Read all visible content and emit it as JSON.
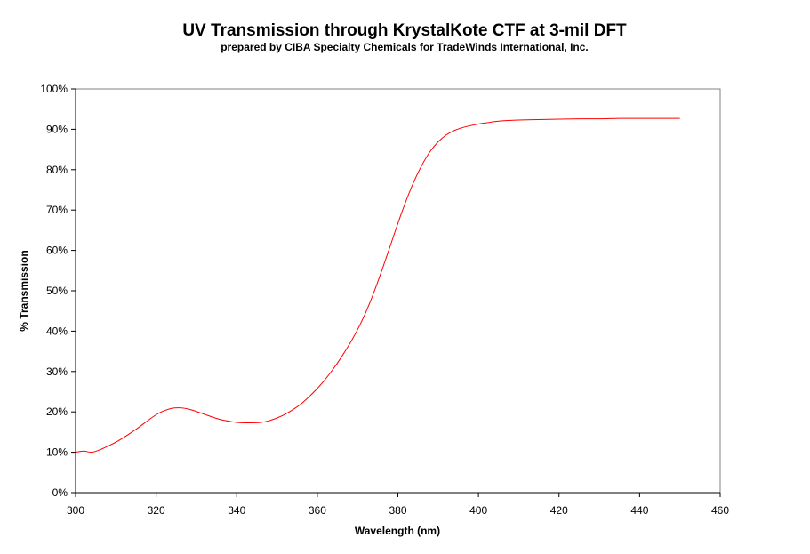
{
  "chart_data": {
    "type": "line",
    "title": "UV Transmission through KrystalKote CTF at 3-mil DFT",
    "subtitle": "prepared by CIBA Specialty Chemicals for TradeWinds International, Inc.",
    "xlabel": "Wavelength (nm)",
    "ylabel": "% Transmission",
    "xlim": [
      300,
      460
    ],
    "ylim": [
      0,
      100
    ],
    "x_ticks": [
      "300",
      "320",
      "340",
      "360",
      "380",
      "400",
      "420",
      "440",
      "460"
    ],
    "y_ticks": [
      "0%",
      "10%",
      "20%",
      "30%",
      "40%",
      "50%",
      "60%",
      "70%",
      "80%",
      "90%",
      "100%"
    ],
    "grid": false,
    "legend": "none",
    "line_color": "#ff0000",
    "series": [
      {
        "x": [
          300,
          302,
          304,
          306,
          308,
          310,
          312,
          314,
          316,
          318,
          320,
          322,
          324,
          326,
          328,
          330,
          332,
          334,
          336,
          338,
          340,
          342,
          344,
          346,
          348,
          350,
          352,
          354,
          356,
          358,
          360,
          362,
          364,
          366,
          368,
          370,
          372,
          374,
          376,
          378,
          380,
          382,
          384,
          386,
          388,
          390,
          392,
          394,
          396,
          398,
          400,
          402,
          404,
          406,
          408,
          410,
          415,
          420,
          425,
          430,
          435,
          440,
          445,
          450
        ],
        "y": [
          10.0,
          10.3,
          10.0,
          10.6,
          11.5,
          12.5,
          13.7,
          15.0,
          16.4,
          17.9,
          19.3,
          20.3,
          20.9,
          21.0,
          20.7,
          20.1,
          19.4,
          18.7,
          18.1,
          17.7,
          17.4,
          17.3,
          17.3,
          17.4,
          17.8,
          18.5,
          19.4,
          20.6,
          22.0,
          23.8,
          25.8,
          28.1,
          30.7,
          33.6,
          36.8,
          40.4,
          44.6,
          49.5,
          55.0,
          60.8,
          66.7,
          72.2,
          77.1,
          81.2,
          84.5,
          86.9,
          88.6,
          89.7,
          90.4,
          90.9,
          91.3,
          91.6,
          91.9,
          92.1,
          92.2,
          92.3,
          92.4,
          92.5,
          92.6,
          92.6,
          92.7,
          92.7,
          92.7,
          92.7
        ]
      }
    ]
  }
}
